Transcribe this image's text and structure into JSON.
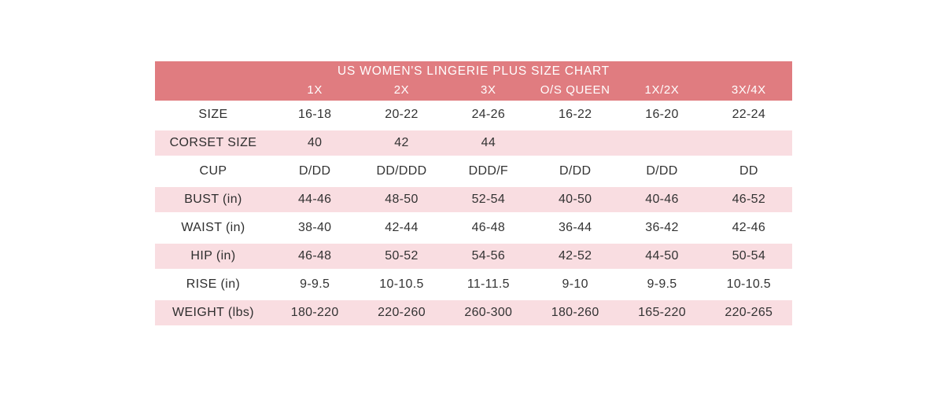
{
  "chart_data": {
    "type": "table",
    "title": "US WOMEN'S LINGERIE PLUS SIZE CHART",
    "columns": [
      "1X",
      "2X",
      "3X",
      "O/S QUEEN",
      "1X/2X",
      "3X/4X"
    ],
    "rows": [
      {
        "label": "SIZE",
        "values": [
          "16-18",
          "20-22",
          "24-26",
          "16-22",
          "16-20",
          "22-24"
        ]
      },
      {
        "label": "CORSET SIZE",
        "values": [
          "40",
          "42",
          "44",
          "",
          "",
          ""
        ]
      },
      {
        "label": "CUP",
        "values": [
          "D/DD",
          "DD/DDD",
          "DDD/F",
          "D/DD",
          "D/DD",
          "DD"
        ]
      },
      {
        "label": "BUST (in)",
        "values": [
          "44-46",
          "48-50",
          "52-54",
          "40-50",
          "40-46",
          "46-52"
        ]
      },
      {
        "label": "WAIST (in)",
        "values": [
          "38-40",
          "42-44",
          "46-48",
          "36-44",
          "36-42",
          "42-46"
        ]
      },
      {
        "label": "HIP (in)",
        "values": [
          "46-48",
          "50-52",
          "54-56",
          "42-52",
          "44-50",
          "50-54"
        ]
      },
      {
        "label": "RISE (in)",
        "values": [
          "9-9.5",
          "10-10.5",
          "11-11.5",
          "9-10",
          "9-9.5",
          "10-10.5"
        ]
      },
      {
        "label": "WEIGHT (lbs)",
        "values": [
          "180-220",
          "220-260",
          "260-300",
          "180-260",
          "165-220",
          "220-265"
        ]
      }
    ],
    "colors": {
      "header_bg": "#e07c80",
      "header_text": "#ffffff",
      "pink_row_bg": "#f9dde1",
      "body_text": "#333333",
      "page_bg": "#ffffff"
    },
    "layout_hints": {
      "alternating_rows": "white / pink starting with white",
      "header_rows": 2,
      "grid": "off"
    }
  }
}
